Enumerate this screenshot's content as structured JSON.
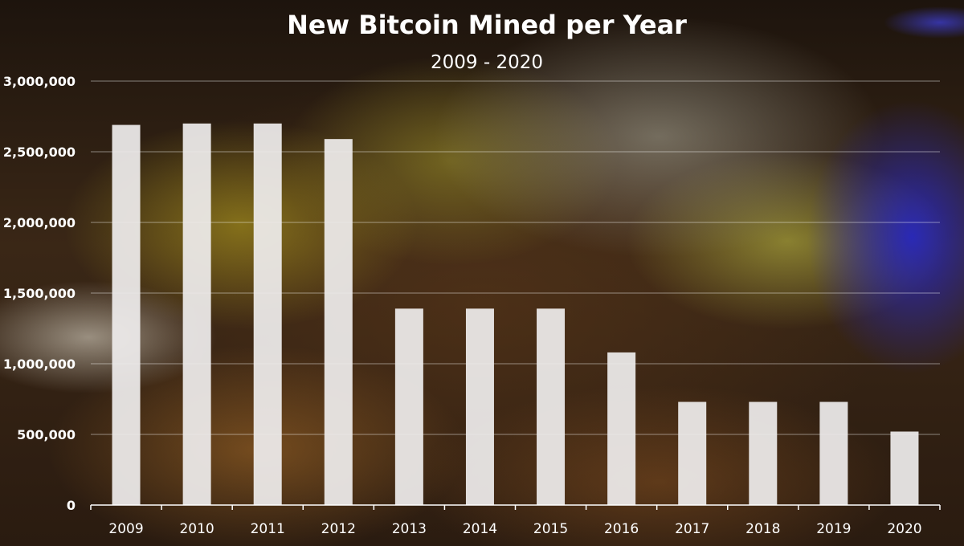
{
  "chart_data": {
    "type": "bar",
    "title": "New Bitcoin Mined per Year",
    "subtitle": "2009 - 2020",
    "xlabel": "",
    "ylabel": "",
    "categories": [
      "2009",
      "2010",
      "2011",
      "2012",
      "2013",
      "2014",
      "2015",
      "2016",
      "2017",
      "2018",
      "2019",
      "2020"
    ],
    "values": [
      2690000,
      2700000,
      2700000,
      2590000,
      1390000,
      1390000,
      1390000,
      1080000,
      730000,
      730000,
      730000,
      520000
    ],
    "ylim": [
      0,
      3000000
    ],
    "yticks": [
      0,
      500000,
      1000000,
      1500000,
      2000000,
      2500000,
      3000000
    ],
    "ytick_labels": [
      "0",
      "500,000",
      "1,000,000",
      "1,500,000",
      "2,000,000",
      "2,500,000",
      "3,000,000"
    ],
    "grid": true,
    "legend": "none",
    "bar_color": "#eeecec",
    "text_color": "#ffffff"
  }
}
